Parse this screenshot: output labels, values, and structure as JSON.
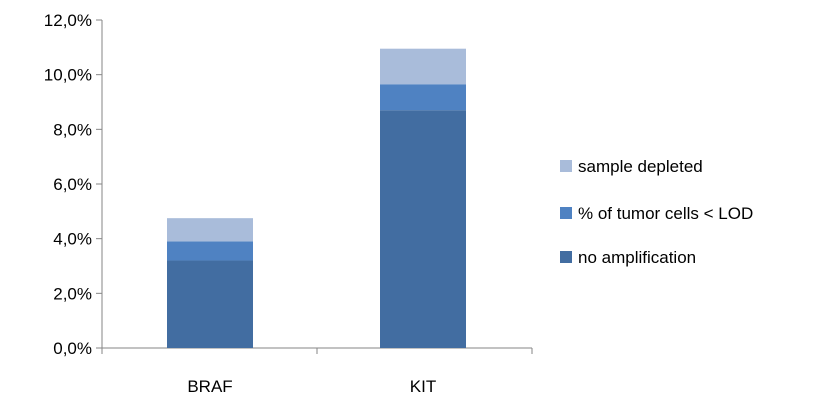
{
  "chart_data": {
    "type": "bar",
    "stacked": true,
    "title": "",
    "xlabel": "",
    "ylabel": "",
    "categories": [
      "BRAF",
      "KIT"
    ],
    "series": [
      {
        "name": "no amplification",
        "values": [
          3.2,
          8.7
        ],
        "color": "#426DA1"
      },
      {
        "name": "% of tumor cells < LOD",
        "values": [
          0.7,
          0.95
        ],
        "color": "#4F82C2"
      },
      {
        "name": "sample depleted",
        "values": [
          0.85,
          1.3
        ],
        "color": "#A9BCDA"
      }
    ],
    "ylim": [
      0,
      12
    ],
    "yticks": [
      "0,0%",
      "2,0%",
      "4,0%",
      "6,0%",
      "8,0%",
      "10,0%",
      "12,0%"
    ],
    "grid": false,
    "legend": {
      "position": "right",
      "entries": [
        "sample depleted",
        "% of tumor cells < LOD",
        "no amplification"
      ]
    }
  }
}
